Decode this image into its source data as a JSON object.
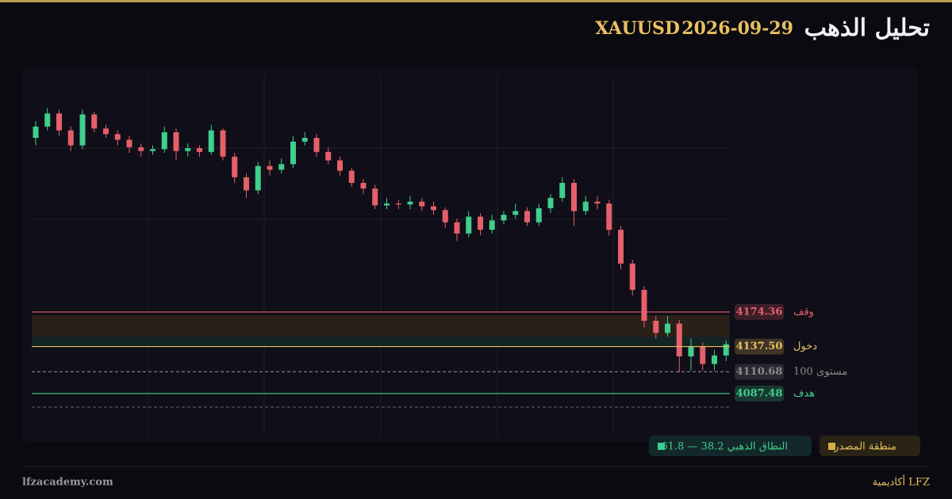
{
  "header": {
    "title": "تحليل الذهب",
    "date": "2026-09-29",
    "symbol": "XAUUSD"
  },
  "chart_data": {
    "type": "candlestick",
    "ylim": [
      4051,
      4431
    ],
    "up_color": "#3fcf8e",
    "down_color": "#e5606a",
    "open": [
      4360,
      4372,
      4386,
      4368,
      4352,
      4385,
      4370,
      4364,
      4358,
      4350,
      4346,
      4348,
      4366,
      4346,
      4349,
      4345,
      4368,
      4340,
      4318,
      4304,
      4330,
      4326,
      4332,
      4356,
      4360,
      4345,
      4336,
      4325,
      4312,
      4306,
      4288,
      4290,
      4289,
      4292,
      4287,
      4283,
      4270,
      4258,
      4276,
      4262,
      4272,
      4278,
      4282,
      4270,
      4285,
      4296,
      4312,
      4282,
      4292,
      4290,
      4262,
      4226,
      4198,
      4165,
      4152,
      4162,
      4127,
      4138,
      4119,
      4128
    ],
    "high": [
      4378,
      4392,
      4390,
      4372,
      4390,
      4388,
      4374,
      4368,
      4362,
      4354,
      4352,
      4372,
      4370,
      4354,
      4352,
      4374,
      4370,
      4344,
      4322,
      4334,
      4336,
      4338,
      4362,
      4366,
      4364,
      4350,
      4340,
      4328,
      4316,
      4310,
      4296,
      4294,
      4298,
      4296,
      4292,
      4286,
      4274,
      4282,
      4280,
      4278,
      4282,
      4290,
      4286,
      4290,
      4300,
      4318,
      4316,
      4298,
      4298,
      4294,
      4266,
      4230,
      4202,
      4170,
      4170,
      4166,
      4146,
      4142,
      4134,
      4144
    ],
    "low": [
      4352,
      4368,
      4362,
      4346,
      4348,
      4366,
      4360,
      4352,
      4344,
      4340,
      4342,
      4344,
      4336,
      4340,
      4340,
      4342,
      4336,
      4312,
      4296,
      4300,
      4320,
      4322,
      4328,
      4352,
      4340,
      4332,
      4320,
      4308,
      4300,
      4284,
      4284,
      4284,
      4284,
      4282,
      4278,
      4264,
      4250,
      4254,
      4256,
      4258,
      4268,
      4274,
      4266,
      4266,
      4280,
      4292,
      4266,
      4278,
      4284,
      4256,
      4220,
      4192,
      4158,
      4146,
      4148,
      4110,
      4112,
      4112,
      4112,
      4122
    ],
    "close": [
      4372,
      4386,
      4368,
      4352,
      4385,
      4370,
      4364,
      4358,
      4350,
      4346,
      4348,
      4366,
      4346,
      4349,
      4345,
      4368,
      4340,
      4318,
      4304,
      4330,
      4326,
      4332,
      4356,
      4360,
      4345,
      4336,
      4325,
      4312,
      4306,
      4288,
      4290,
      4289,
      4292,
      4287,
      4283,
      4270,
      4258,
      4276,
      4262,
      4272,
      4278,
      4282,
      4270,
      4285,
      4296,
      4312,
      4282,
      4292,
      4290,
      4262,
      4226,
      4198,
      4165,
      4152,
      4162,
      4127,
      4138,
      4119,
      4128,
      4140
    ],
    "levels": [
      {
        "label": "وقف",
        "value": 4174.36,
        "value_label": "4174.36",
        "color": "#e5606a"
      },
      {
        "label": "دخول",
        "value": 4137.5,
        "value_label": "4137.50",
        "color": "#e8c060"
      },
      {
        "label": "مستوى 100",
        "value": 4110.68,
        "value_label": "4110.68",
        "color": "#8a8a8a"
      },
      {
        "label": "هدف",
        "value": 4087.48,
        "value_label": "4087.48",
        "color": "#3fcf8e"
      }
    ]
  },
  "legend": {
    "source_zone": "منطقة المصدر",
    "golden_range": "النطاق الذهبي 38.2 — 61.8"
  },
  "footer": {
    "site": "lfzacademy.com",
    "brand": "أكاديمية LFZ"
  }
}
